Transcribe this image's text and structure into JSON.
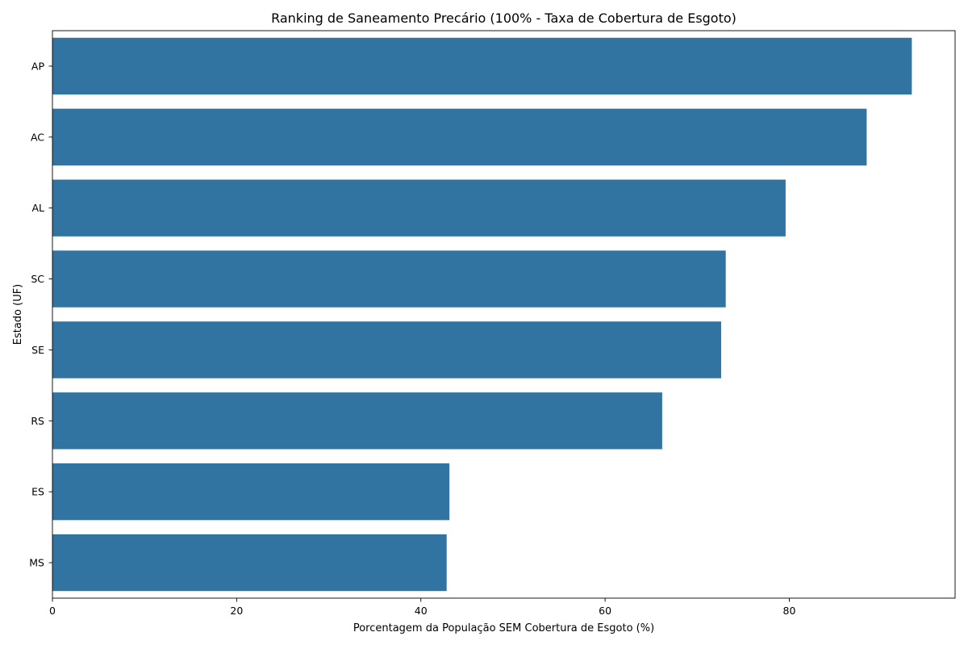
{
  "chart_data": {
    "type": "bar",
    "orientation": "horizontal",
    "title": "Ranking de Saneamento Precário (100% - Taxa de Cobertura de Esgoto)",
    "xlabel": "Porcentagem da População SEM Cobertura de Esgoto (%)",
    "ylabel": "Estado (UF)",
    "categories": [
      "AP",
      "AC",
      "AL",
      "SC",
      "SE",
      "RS",
      "ES",
      "MS"
    ],
    "values": [
      93.3,
      88.4,
      79.6,
      73.1,
      72.6,
      66.2,
      43.1,
      42.8
    ],
    "xlim": [
      0,
      98
    ],
    "xticks": [
      0,
      20,
      40,
      60,
      80
    ],
    "grid": false,
    "bar_color": "#3274a1"
  }
}
